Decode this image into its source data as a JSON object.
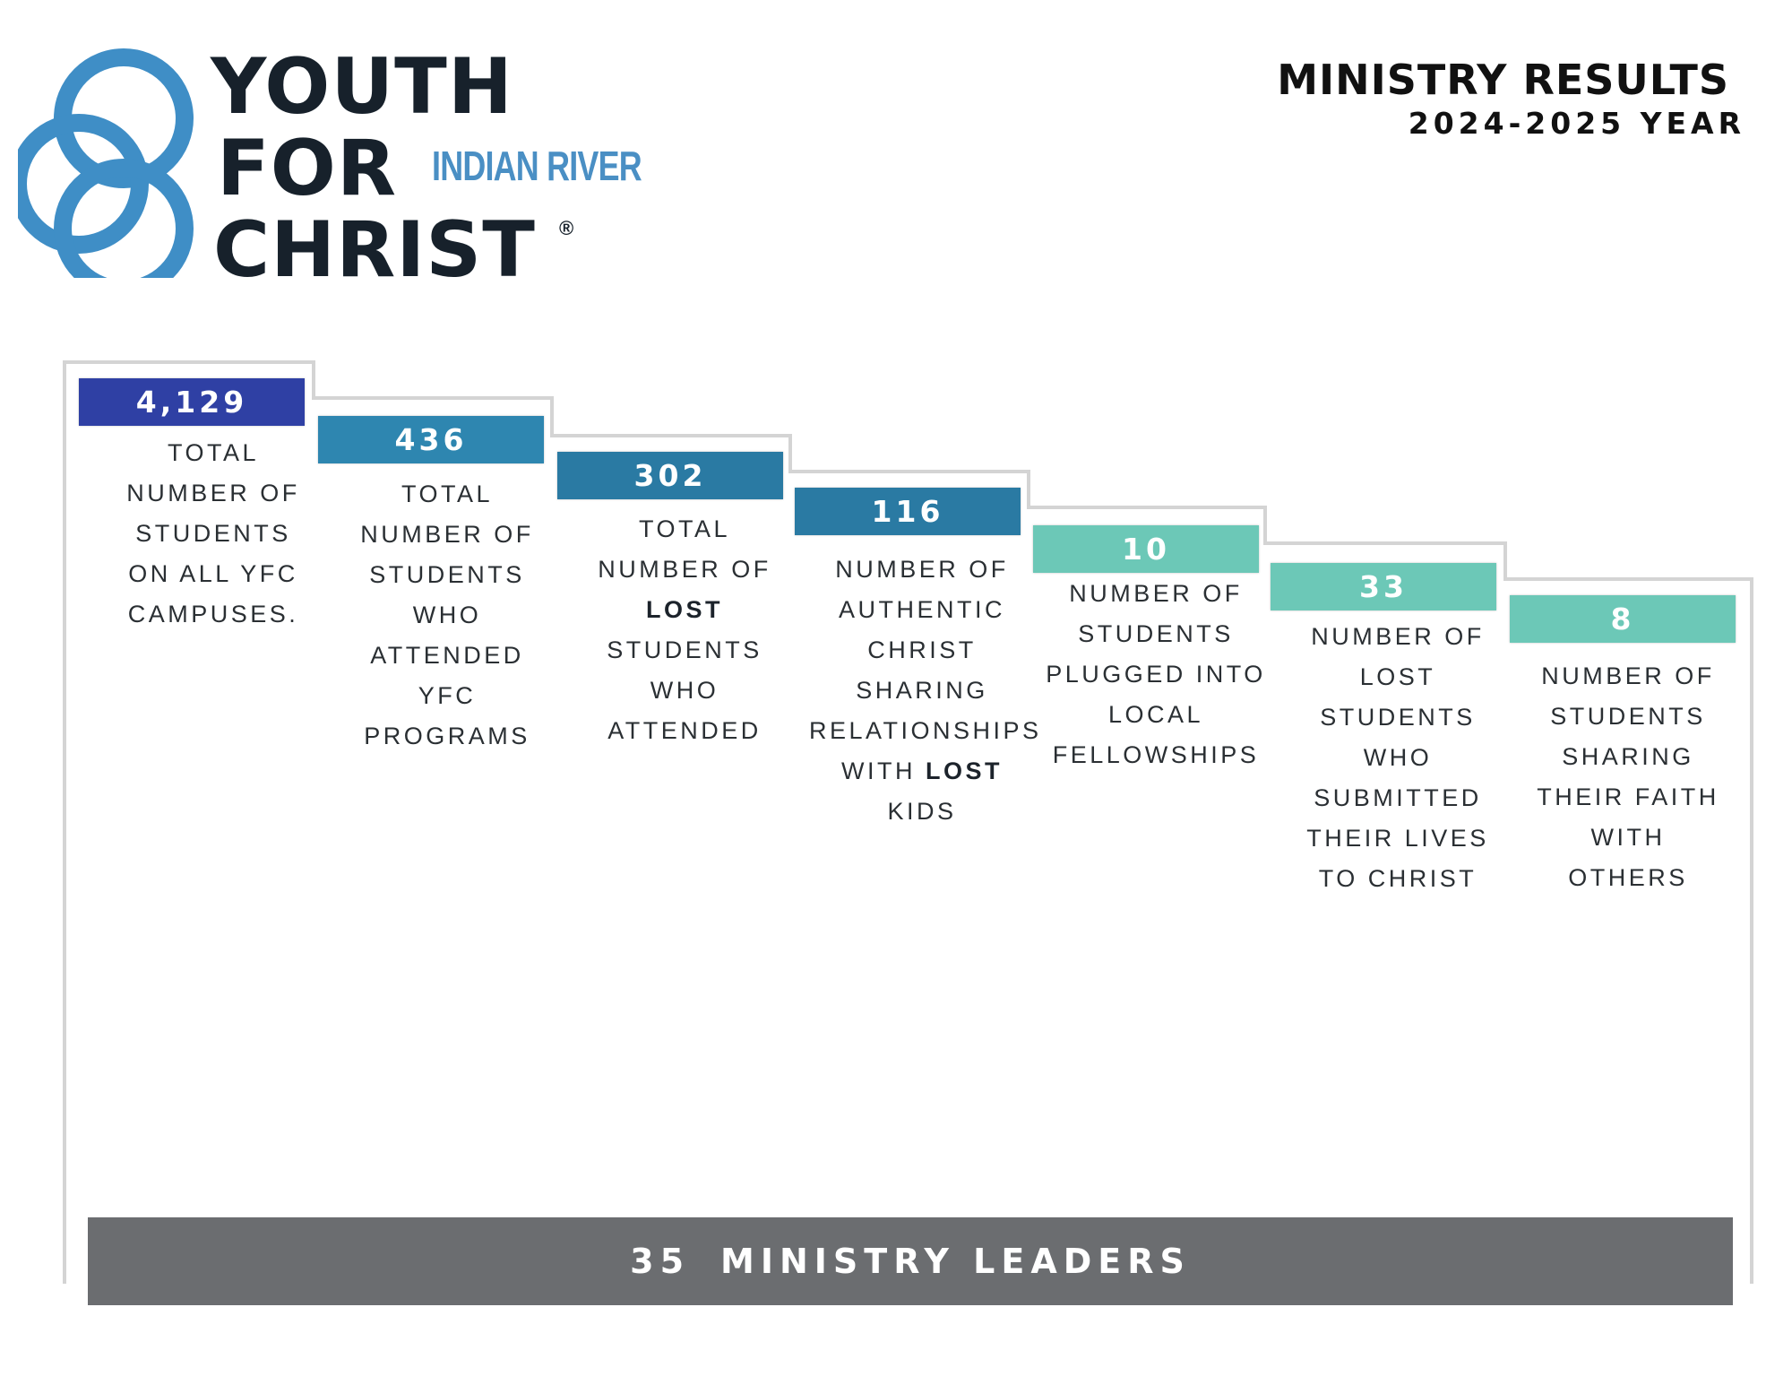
{
  "logo": {
    "line1": "YOUTH",
    "line2": "FOR",
    "line3": "CHRIST",
    "registered": "®",
    "chapter": "INDIAN RIVER"
  },
  "header": {
    "title": "MINISTRY RESULTS",
    "year": "2024-2025 YEAR"
  },
  "colors": {
    "navy": "#2f40a4",
    "blue": "#2e86b0",
    "blue_dark": "#2a7aa3",
    "teal": "#6cc8b7",
    "logo_blue": "#3f8ec6",
    "leaders_bar": "#6b6d70"
  },
  "stats": [
    {
      "value": "4,129",
      "lines": [
        {
          "parts": [
            {
              "t": "TOTAL"
            }
          ]
        },
        {
          "parts": [
            {
              "t": "NUMBER OF"
            }
          ]
        },
        {
          "parts": [
            {
              "t": "STUDENTS"
            }
          ]
        },
        {
          "parts": [
            {
              "t": "ON ALL YFC"
            }
          ]
        },
        {
          "parts": [
            {
              "t": "CAMPUSES."
            }
          ]
        }
      ]
    },
    {
      "value": "436",
      "lines": [
        {
          "parts": [
            {
              "t": "TOTAL"
            }
          ]
        },
        {
          "parts": [
            {
              "t": "NUMBER OF"
            }
          ]
        },
        {
          "parts": [
            {
              "t": "STUDENTS"
            }
          ]
        },
        {
          "parts": [
            {
              "t": "WHO"
            }
          ]
        },
        {
          "parts": [
            {
              "t": "ATTENDED"
            }
          ]
        },
        {
          "parts": [
            {
              "t": "YFC"
            }
          ]
        },
        {
          "parts": [
            {
              "t": "PROGRAMS"
            }
          ]
        }
      ]
    },
    {
      "value": "302",
      "lines": [
        {
          "parts": [
            {
              "t": "TOTAL"
            }
          ]
        },
        {
          "parts": [
            {
              "t": "NUMBER OF"
            }
          ]
        },
        {
          "parts": [
            {
              "t": "LOST",
              "b": true
            }
          ]
        },
        {
          "parts": [
            {
              "t": "STUDENTS"
            }
          ]
        },
        {
          "parts": [
            {
              "t": "WHO"
            }
          ]
        },
        {
          "parts": [
            {
              "t": "ATTENDED"
            }
          ]
        }
      ]
    },
    {
      "value": "116",
      "lines": [
        {
          "parts": [
            {
              "t": "NUMBER OF"
            }
          ]
        },
        {
          "parts": [
            {
              "t": "AUTHENTIC"
            }
          ]
        },
        {
          "parts": [
            {
              "t": "CHRIST"
            }
          ]
        },
        {
          "parts": [
            {
              "t": "SHARING"
            }
          ]
        },
        {
          "parts": [
            {
              "t": "RELATIONSHIPS"
            }
          ]
        },
        {
          "parts": [
            {
              "t": "WITH "
            },
            {
              "t": "LOST",
              "b": true
            }
          ]
        },
        {
          "parts": [
            {
              "t": "KIDS"
            }
          ]
        }
      ]
    },
    {
      "value": "10",
      "lines": [
        {
          "parts": [
            {
              "t": "NUMBER OF"
            }
          ]
        },
        {
          "parts": [
            {
              "t": "STUDENTS"
            }
          ]
        },
        {
          "parts": [
            {
              "t": "PLUGGED INTO"
            }
          ]
        },
        {
          "parts": [
            {
              "t": "LOCAL"
            }
          ]
        },
        {
          "parts": [
            {
              "t": "FELLOWSHIPS"
            }
          ]
        }
      ]
    },
    {
      "value": "33",
      "lines": [
        {
          "parts": [
            {
              "t": "NUMBER OF"
            }
          ]
        },
        {
          "parts": [
            {
              "t": "LOST"
            }
          ]
        },
        {
          "parts": [
            {
              "t": "STUDENTS"
            }
          ]
        },
        {
          "parts": [
            {
              "t": "WHO"
            }
          ]
        },
        {
          "parts": [
            {
              "t": "SUBMITTED"
            }
          ]
        },
        {
          "parts": [
            {
              "t": "THEIR LIVES"
            }
          ]
        },
        {
          "parts": [
            {
              "t": "TO CHRIST"
            }
          ]
        }
      ]
    },
    {
      "value": "8",
      "lines": [
        {
          "parts": [
            {
              "t": "NUMBER OF"
            }
          ]
        },
        {
          "parts": [
            {
              "t": "STUDENTS"
            }
          ]
        },
        {
          "parts": [
            {
              "t": "SHARING"
            }
          ]
        },
        {
          "parts": [
            {
              "t": "THEIR FAITH"
            }
          ]
        },
        {
          "parts": [
            {
              "t": "WITH"
            }
          ]
        },
        {
          "parts": [
            {
              "t": "OTHERS"
            }
          ]
        }
      ]
    }
  ],
  "leaders": {
    "number": "35",
    "label": "MINISTRY LEADERS"
  }
}
